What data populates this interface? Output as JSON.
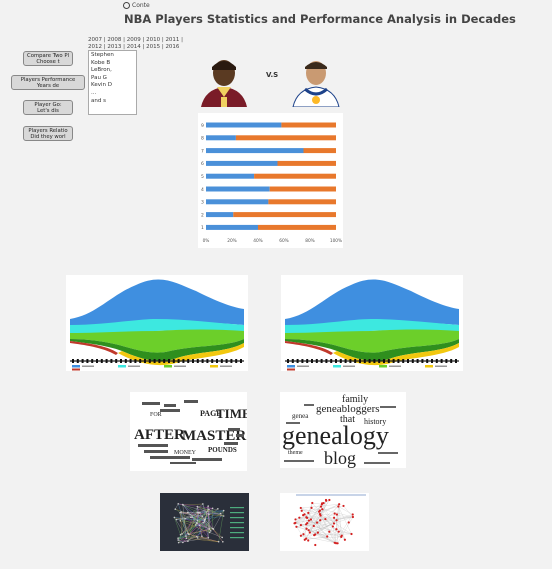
{
  "app": {
    "logo_text": "Conte",
    "title": "NBA Players Statistics and Performance Analysis in Decades"
  },
  "filters": {
    "years": [
      "2007",
      "2008",
      "2009",
      "2010",
      "2011",
      "2012",
      "2013",
      "2014",
      "2015",
      "2016"
    ],
    "players": [
      "Stephen",
      "Kobe B",
      "LeBron,",
      "Pau G",
      "Kevin D",
      "...",
      "and s"
    ]
  },
  "nav": {
    "compare": {
      "line1": "Compare Two Pl",
      "line2": "Choose t"
    },
    "performance": {
      "line1": "Players Performance",
      "line2": "Years de"
    },
    "player_go": {
      "line1": "Player Go:",
      "line2": "Let's dis"
    },
    "relation": {
      "line1": "Players Relatio",
      "line2": "Did they worl"
    }
  },
  "versus": {
    "label": "V.S"
  },
  "colors": {
    "blue": "#4a90d9",
    "orange": "#e8782c",
    "stream_blue": "#3f8fe0",
    "stream_cyan": "#3de8e0",
    "stream_green": "#6ccf2a",
    "stream_dgreen": "#2f8f1e",
    "stream_yellow": "#f2c80f",
    "stream_red": "#c0392b"
  },
  "chart_data": {
    "type": "bar",
    "orientation": "horizontal-stacked-percent",
    "categories": [
      "1",
      "2",
      "3",
      "4",
      "5",
      "6",
      "7",
      "8",
      "9"
    ],
    "series": [
      {
        "values": [
          40,
          21,
          48,
          49,
          37,
          55,
          75,
          23,
          58
        ]
      },
      {
        "values": [
          60,
          79,
          52,
          51,
          63,
          45,
          25,
          77,
          42
        ]
      }
    ],
    "x_ticks": [
      "0%",
      "20%",
      "40%",
      "60%",
      "80%",
      "100%"
    ],
    "xlim": [
      0,
      100
    ]
  },
  "wordclouds": {
    "left": [
      "AFTER",
      "MASTER",
      "TIME",
      "PAGE",
      "FOR",
      "POUNDS",
      "MONEY"
    ],
    "right": [
      "genealogy",
      "blog",
      "genea",
      "geneabloggers",
      "family",
      "history",
      "that",
      "theme"
    ]
  }
}
